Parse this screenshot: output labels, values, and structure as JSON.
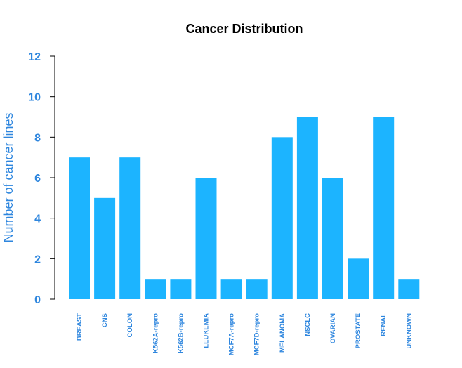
{
  "chart_data": {
    "type": "bar",
    "title": "Cancer Distribution",
    "xlabel": "",
    "ylabel": "Number of cancer lines",
    "categories": [
      "BREAST",
      "CNS",
      "COLON",
      "K562A-repro",
      "K562B-repro",
      "LEUKEMIA",
      "MCF7A-repro",
      "MCF7D-repro",
      "MELANOMA",
      "NSCLC",
      "OVARIAN",
      "PROSTATE",
      "RENAL",
      "UNKNOWN"
    ],
    "values": [
      7,
      5,
      7,
      1,
      1,
      6,
      1,
      1,
      8,
      9,
      6,
      2,
      9,
      1
    ],
    "ylim": [
      0,
      12
    ],
    "yticks": [
      "0",
      "2",
      "4",
      "6",
      "8",
      "10",
      "12"
    ],
    "grid": false,
    "legend": "none",
    "colors": {
      "bar": "#1CB4FF",
      "axis_text": "#2E86DE",
      "title": "#000000",
      "axis_line": "#000000"
    }
  }
}
